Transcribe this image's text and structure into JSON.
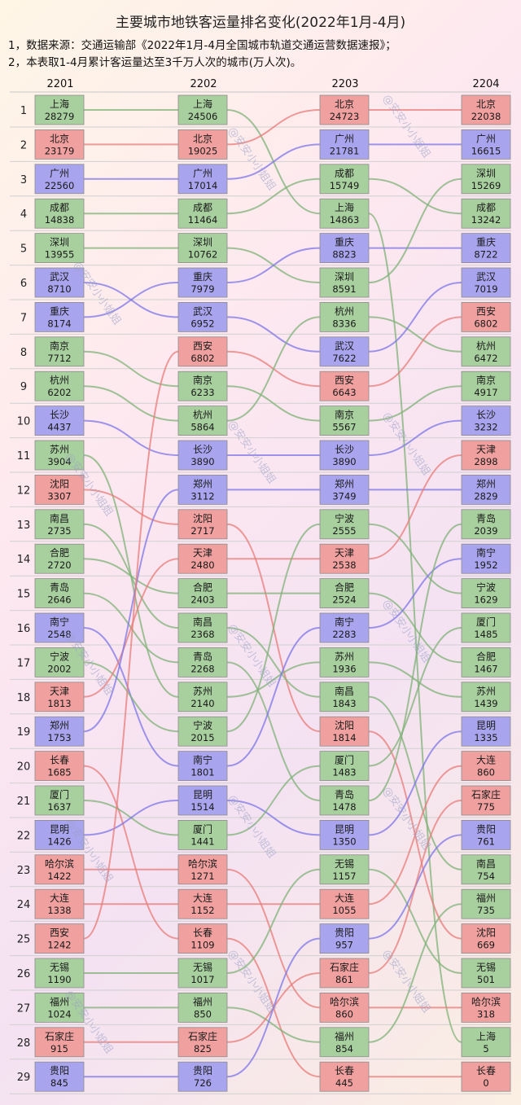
{
  "title": "主要城市地铁客运量排名变化(2022年1月-4月)",
  "notes": [
    "1，数据来源：交通运输部《2022年1月-4月全国城市轨道交通运营数据速报》；",
    "2，本表取1-4月累计客运量达至3千万人次的城市(万人次)。"
  ],
  "watermark": "@安安小小姐姐",
  "colors": {
    "green": "#a8cf9e",
    "red": "#f0a09e",
    "blue": "#a9a4ee",
    "line_green": "#7fb277",
    "line_red": "#e77c7a",
    "line_blue": "#7d76e6"
  },
  "chart_data": {
    "type": "table",
    "unit": "万人次",
    "columns": [
      "2201",
      "2202",
      "2203",
      "2204"
    ],
    "ranks": [
      1,
      2,
      3,
      4,
      5,
      6,
      7,
      8,
      9,
      10,
      11,
      12,
      13,
      14,
      15,
      16,
      17,
      18,
      19,
      20,
      21,
      22,
      23,
      24,
      25,
      26,
      27,
      28,
      29
    ],
    "rankings": [
      [
        {
          "city": "上海",
          "value": 28279
        },
        {
          "city": "北京",
          "value": 23179
        },
        {
          "city": "广州",
          "value": 22560
        },
        {
          "city": "成都",
          "value": 14838
        },
        {
          "city": "深圳",
          "value": 13955
        },
        {
          "city": "武汉",
          "value": 8710
        },
        {
          "city": "重庆",
          "value": 8174
        },
        {
          "city": "南京",
          "value": 7712
        },
        {
          "city": "杭州",
          "value": 6202
        },
        {
          "city": "长沙",
          "value": 4437
        },
        {
          "city": "苏州",
          "value": 3904
        },
        {
          "city": "沈阳",
          "value": 3307
        },
        {
          "city": "南昌",
          "value": 2735
        },
        {
          "city": "合肥",
          "value": 2720
        },
        {
          "city": "青岛",
          "value": 2646
        },
        {
          "city": "南宁",
          "value": 2548
        },
        {
          "city": "宁波",
          "value": 2002
        },
        {
          "city": "天津",
          "value": 1813
        },
        {
          "city": "郑州",
          "value": 1753
        },
        {
          "city": "长春",
          "value": 1685
        },
        {
          "city": "厦门",
          "value": 1637
        },
        {
          "city": "昆明",
          "value": 1426
        },
        {
          "city": "哈尔滨",
          "value": 1422
        },
        {
          "city": "大连",
          "value": 1338
        },
        {
          "city": "西安",
          "value": 1242
        },
        {
          "city": "无锡",
          "value": 1190
        },
        {
          "city": "福州",
          "value": 1024
        },
        {
          "city": "石家庄",
          "value": 915
        },
        {
          "city": "贵阳",
          "value": 845
        }
      ],
      [
        {
          "city": "上海",
          "value": 24506
        },
        {
          "city": "北京",
          "value": 19025
        },
        {
          "city": "广州",
          "value": 17014
        },
        {
          "city": "成都",
          "value": 11464
        },
        {
          "city": "深圳",
          "value": 10762
        },
        {
          "city": "重庆",
          "value": 7979
        },
        {
          "city": "武汉",
          "value": 6952
        },
        {
          "city": "西安",
          "value": 6802
        },
        {
          "city": "南京",
          "value": 6233
        },
        {
          "city": "杭州",
          "value": 5864
        },
        {
          "city": "长沙",
          "value": 3890
        },
        {
          "city": "郑州",
          "value": 3112
        },
        {
          "city": "沈阳",
          "value": 2717
        },
        {
          "city": "天津",
          "value": 2480
        },
        {
          "city": "合肥",
          "value": 2403
        },
        {
          "city": "南昌",
          "value": 2368
        },
        {
          "city": "青岛",
          "value": 2268
        },
        {
          "city": "苏州",
          "value": 2140
        },
        {
          "city": "宁波",
          "value": 2015
        },
        {
          "city": "南宁",
          "value": 1801
        },
        {
          "city": "昆明",
          "value": 1514
        },
        {
          "city": "厦门",
          "value": 1441
        },
        {
          "city": "哈尔滨",
          "value": 1271
        },
        {
          "city": "大连",
          "value": 1152
        },
        {
          "city": "长春",
          "value": 1109
        },
        {
          "city": "无锡",
          "value": 1017
        },
        {
          "city": "福州",
          "value": 850
        },
        {
          "city": "石家庄",
          "value": 825
        },
        {
          "city": "贵阳",
          "value": 726
        }
      ],
      [
        {
          "city": "北京",
          "value": 24723
        },
        {
          "city": "广州",
          "value": 21781
        },
        {
          "city": "成都",
          "value": 15749
        },
        {
          "city": "上海",
          "value": 14863
        },
        {
          "city": "重庆",
          "value": 8823
        },
        {
          "city": "深圳",
          "value": 8591
        },
        {
          "city": "杭州",
          "value": 8336
        },
        {
          "city": "武汉",
          "value": 7622
        },
        {
          "city": "西安",
          "value": 6643
        },
        {
          "city": "南京",
          "value": 5567
        },
        {
          "city": "长沙",
          "value": 3890
        },
        {
          "city": "郑州",
          "value": 3749
        },
        {
          "city": "宁波",
          "value": 2555
        },
        {
          "city": "天津",
          "value": 2538
        },
        {
          "city": "合肥",
          "value": 2524
        },
        {
          "city": "南宁",
          "value": 2283
        },
        {
          "city": "苏州",
          "value": 1936
        },
        {
          "city": "南昌",
          "value": 1843
        },
        {
          "city": "沈阳",
          "value": 1814
        },
        {
          "city": "厦门",
          "value": 1483
        },
        {
          "city": "青岛",
          "value": 1478
        },
        {
          "city": "昆明",
          "value": 1350
        },
        {
          "city": "无锡",
          "value": 1157
        },
        {
          "city": "大连",
          "value": 1055
        },
        {
          "city": "贵阳",
          "value": 957
        },
        {
          "city": "石家庄",
          "value": 861
        },
        {
          "city": "哈尔滨",
          "value": 860
        },
        {
          "city": "福州",
          "value": 854
        },
        {
          "city": "长春",
          "value": 445
        }
      ],
      [
        {
          "city": "北京",
          "value": 22038
        },
        {
          "city": "广州",
          "value": 16615
        },
        {
          "city": "深圳",
          "value": 15269
        },
        {
          "city": "成都",
          "value": 13242
        },
        {
          "city": "重庆",
          "value": 8722
        },
        {
          "city": "武汉",
          "value": 7019
        },
        {
          "city": "西安",
          "value": 6802
        },
        {
          "city": "杭州",
          "value": 6472
        },
        {
          "city": "南京",
          "value": 4917
        },
        {
          "city": "长沙",
          "value": 3232
        },
        {
          "city": "天津",
          "value": 2898
        },
        {
          "city": "郑州",
          "value": 2829
        },
        {
          "city": "青岛",
          "value": 2039
        },
        {
          "city": "南宁",
          "value": 1952
        },
        {
          "city": "宁波",
          "value": 1629
        },
        {
          "city": "厦门",
          "value": 1485
        },
        {
          "city": "合肥",
          "value": 1467
        },
        {
          "city": "苏州",
          "value": 1439
        },
        {
          "city": "昆明",
          "value": 1335
        },
        {
          "city": "大连",
          "value": 860
        },
        {
          "city": "石家庄",
          "value": 775
        },
        {
          "city": "贵阳",
          "value": 761
        },
        {
          "city": "南昌",
          "value": 754
        },
        {
          "city": "福州",
          "value": 735
        },
        {
          "city": "沈阳",
          "value": 669
        },
        {
          "city": "无锡",
          "value": 501
        },
        {
          "city": "哈尔滨",
          "value": 318
        },
        {
          "city": "上海",
          "value": 5
        },
        {
          "city": "长春",
          "value": 0
        }
      ]
    ],
    "city_colors": {
      "上海": "green",
      "北京": "red",
      "广州": "blue",
      "成都": "green",
      "深圳": "green",
      "武汉": "blue",
      "重庆": "blue",
      "南京": "green",
      "杭州": "green",
      "长沙": "blue",
      "苏州": "green",
      "沈阳": "red",
      "南昌": "green",
      "合肥": "green",
      "青岛": "green",
      "南宁": "blue",
      "宁波": "green",
      "天津": "red",
      "郑州": "blue",
      "长春": "red",
      "厦门": "green",
      "昆明": "blue",
      "哈尔滨": "red",
      "大连": "red",
      "西安": "red",
      "无锡": "green",
      "福州": "green",
      "石家庄": "red",
      "贵阳": "blue"
    }
  }
}
